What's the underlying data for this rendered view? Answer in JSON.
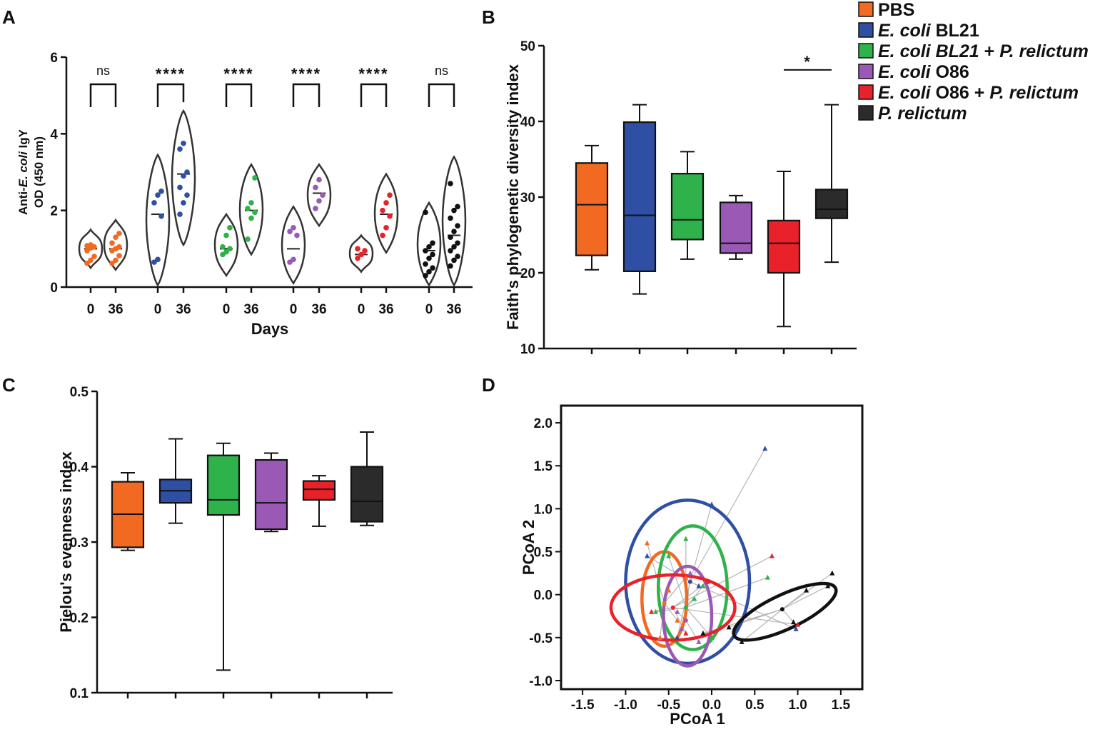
{
  "panel_letters": {
    "a": "A",
    "b": "B",
    "c": "C",
    "d": "D"
  },
  "legend": {
    "items": [
      {
        "name": "pbs",
        "parts": [
          {
            "t": "PBS",
            "i": false
          }
        ],
        "color": "#f26a21"
      },
      {
        "name": "ecoli-bl21",
        "parts": [
          {
            "t": "E. coli",
            "i": true
          },
          {
            "t": " BL21",
            "i": false
          }
        ],
        "color": "#2e4fa3"
      },
      {
        "name": "ecoli-bl21-prelictum",
        "parts": [
          {
            "t": "E. coli BL21",
            "i": true
          },
          {
            "t": " + ",
            "i": false
          },
          {
            "t": "P. relictum",
            "i": true
          }
        ],
        "color": "#2fb24a"
      },
      {
        "name": "ecoli-o86",
        "parts": [
          {
            "t": "E. coli",
            "i": true
          },
          {
            "t": " O86",
            "i": false
          }
        ],
        "color": "#9b59b6"
      },
      {
        "name": "ecoli-o86-prelictum",
        "parts": [
          {
            "t": "E. coli",
            "i": true
          },
          {
            "t": " O86 + ",
            "i": false
          },
          {
            "t": "P. relictum",
            "i": true
          }
        ],
        "color": "#e8212a"
      },
      {
        "name": "prelictum",
        "parts": [
          {
            "t": "P. relictum",
            "i": true
          }
        ],
        "color": "#2b2b2b"
      }
    ]
  },
  "chart_data": [
    {
      "panel": "A",
      "type": "violin",
      "ylabel_line1_pre": "Anti-",
      "ylabel_line1_italic": "E. coli",
      "ylabel_line1_post": " IgY",
      "ylabel_line2": "OD (450 nm)",
      "xlabel": "Days",
      "ylim": [
        0,
        6
      ],
      "yticks": [
        0,
        2,
        4,
        6
      ],
      "timepoint_labels": [
        "0",
        "36"
      ],
      "groups": [
        {
          "color": "#f26a21",
          "significance": "ns",
          "day0": {
            "median": 1.0,
            "min": 0.5,
            "max": 1.5,
            "points": [
              0.62,
              0.7,
              0.8,
              0.95,
              1.02,
              1.05,
              1.08,
              1.1
            ]
          },
          "day36": {
            "median": 1.0,
            "min": 0.45,
            "max": 1.75,
            "points": [
              0.62,
              0.7,
              0.82,
              0.95,
              1.0,
              1.05,
              1.15,
              1.3,
              1.4
            ]
          }
        },
        {
          "color": "#2e4fa3",
          "significance": "****",
          "day0": {
            "median": 1.9,
            "min": 0.05,
            "max": 3.45,
            "points": [
              0.65,
              0.72,
              1.85,
              2.2,
              2.4,
              2.5
            ]
          },
          "day36": {
            "median": 2.95,
            "min": 1.1,
            "max": 4.6,
            "points": [
              1.9,
              2.2,
              2.4,
              2.6,
              2.9,
              3.0,
              3.6,
              3.75
            ]
          }
        },
        {
          "color": "#2fb24a",
          "significance": "****",
          "day0": {
            "median": 1.0,
            "min": 0.3,
            "max": 1.9,
            "points": [
              0.85,
              0.92,
              1.0,
              1.05,
              1.35,
              1.55
            ]
          },
          "day36": {
            "median": 2.0,
            "min": 0.85,
            "max": 3.2,
            "points": [
              1.25,
              1.8,
              1.95,
              2.05,
              2.2,
              2.85
            ]
          }
        },
        {
          "color": "#9b59b6",
          "significance": "****",
          "day0": {
            "median": 1.0,
            "min": 0.1,
            "max": 2.1,
            "points": [
              0.65,
              0.72,
              1.35,
              1.45,
              1.55
            ]
          },
          "day36": {
            "median": 2.45,
            "min": 1.6,
            "max": 3.2,
            "points": [
              2.05,
              2.25,
              2.4,
              2.6,
              2.8
            ]
          }
        },
        {
          "color": "#e8212a",
          "significance": "****",
          "day0": {
            "median": 0.85,
            "min": 0.4,
            "max": 1.35,
            "points": [
              0.75,
              0.85,
              0.95,
              1.0
            ]
          },
          "day36": {
            "median": 1.9,
            "min": 0.9,
            "max": 2.95,
            "points": [
              1.35,
              1.55,
              1.85,
              2.0,
              2.2,
              2.4
            ]
          }
        },
        {
          "color": "#111111",
          "significance": "ns",
          "day0": {
            "median": 0.95,
            "min": 0.05,
            "max": 2.2,
            "points": [
              0.3,
              0.4,
              0.5,
              0.6,
              0.75,
              0.85,
              0.95,
              1.05,
              1.15,
              1.95
            ]
          },
          "day36": {
            "median": 1.35,
            "min": 0.05,
            "max": 3.4,
            "points": [
              0.55,
              0.7,
              0.8,
              0.95,
              1.05,
              1.15,
              1.3,
              1.45,
              1.6,
              1.8,
              2.0,
              2.1,
              2.7
            ]
          }
        }
      ]
    },
    {
      "panel": "B",
      "type": "box",
      "ylabel": "Faith's phylogenetic diversity index",
      "ylim": [
        10,
        50
      ],
      "yticks": [
        10,
        20,
        30,
        40,
        50
      ],
      "significance": {
        "label": "*",
        "between": [
          4,
          5
        ],
        "y": 46.8
      },
      "boxes": [
        {
          "color": "#f26a21",
          "min": 20.4,
          "q1": 22.3,
          "median": 29.0,
          "q3": 34.5,
          "max": 36.8
        },
        {
          "color": "#2e4fa3",
          "min": 17.2,
          "q1": 20.2,
          "median": 27.6,
          "q3": 39.9,
          "max": 42.2
        },
        {
          "color": "#2fb24a",
          "min": 21.8,
          "q1": 24.4,
          "median": 27.0,
          "q3": 33.1,
          "max": 36.0
        },
        {
          "color": "#9b59b6",
          "min": 21.8,
          "q1": 22.6,
          "median": 23.9,
          "q3": 29.3,
          "max": 30.2
        },
        {
          "color": "#e8212a",
          "min": 12.9,
          "q1": 20.0,
          "median": 23.9,
          "q3": 26.9,
          "max": 33.4
        },
        {
          "color": "#2b2b2b",
          "min": 21.4,
          "q1": 27.2,
          "median": 28.4,
          "q3": 31.0,
          "max": 42.2
        }
      ]
    },
    {
      "panel": "C",
      "type": "box",
      "ylabel": "Pielou's evenness index",
      "ylim": [
        0.1,
        0.5
      ],
      "yticks": [
        0.1,
        0.2,
        0.3,
        0.4,
        0.5
      ],
      "ytick_labels": [
        "0.1",
        "0.2",
        "0.3",
        "0.4",
        "0.5"
      ],
      "boxes": [
        {
          "color": "#f26a21",
          "min": 0.289,
          "q1": 0.293,
          "median": 0.337,
          "q3": 0.38,
          "max": 0.392
        },
        {
          "color": "#2e4fa3",
          "min": 0.325,
          "q1": 0.352,
          "median": 0.368,
          "q3": 0.383,
          "max": 0.437
        },
        {
          "color": "#2fb24a",
          "min": 0.13,
          "q1": 0.336,
          "median": 0.356,
          "q3": 0.415,
          "max": 0.431
        },
        {
          "color": "#9b59b6",
          "min": 0.314,
          "q1": 0.317,
          "median": 0.352,
          "q3": 0.409,
          "max": 0.418
        },
        {
          "color": "#e8212a",
          "min": 0.321,
          "q1": 0.356,
          "median": 0.37,
          "q3": 0.381,
          "max": 0.388
        },
        {
          "color": "#2b2b2b",
          "min": 0.322,
          "q1": 0.327,
          "median": 0.354,
          "q3": 0.4,
          "max": 0.446
        }
      ]
    },
    {
      "panel": "D",
      "type": "scatter",
      "xlabel": "PCoA 1",
      "ylabel": "PCoA 2",
      "xlim": [
        -1.75,
        1.75
      ],
      "ylim": [
        -1.1,
        2.2
      ],
      "xticks": [
        -1.5,
        -1.0,
        -0.5,
        0.0,
        0.5,
        1.0,
        1.5
      ],
      "xtick_labels": [
        "-1.5",
        "-1.0",
        "-0.5",
        "0.0",
        "0.5",
        "1.0",
        "1.5"
      ],
      "yticks": [
        -1.0,
        -0.5,
        0.0,
        0.5,
        1.0,
        1.5,
        2.0
      ],
      "ytick_labels": [
        "-1.0",
        "-0.5",
        "0.0",
        "0.5",
        "1.0",
        "1.5",
        "2.0"
      ],
      "groups": [
        {
          "color": "#f26a21",
          "centroid": [
            -0.55,
            -0.1
          ],
          "ellipse": {
            "cx": -0.55,
            "cy": -0.05,
            "rx": 0.26,
            "ry": 0.55,
            "angle": 0
          },
          "points": [
            [
              -0.75,
              0.6
            ],
            [
              -0.5,
              0.05
            ],
            [
              -0.4,
              -0.3
            ],
            [
              -0.6,
              -0.5
            ],
            [
              -0.3,
              0.2
            ]
          ]
        },
        {
          "color": "#2e4fa3",
          "centroid": [
            -0.25,
            0.15
          ],
          "ellipse": {
            "cx": -0.28,
            "cy": 0.15,
            "rx": 0.72,
            "ry": 0.95,
            "angle": 0
          },
          "points": [
            [
              0.62,
              1.7
            ],
            [
              0.0,
              1.05
            ],
            [
              -0.75,
              0.45
            ],
            [
              -0.15,
              0.1
            ],
            [
              0.98,
              -0.4
            ],
            [
              -0.4,
              -0.5
            ]
          ]
        },
        {
          "color": "#2fb24a",
          "centroid": [
            -0.3,
            -0.15
          ],
          "ellipse": {
            "cx": -0.22,
            "cy": 0.08,
            "rx": 0.4,
            "ry": 0.72,
            "angle": 0
          },
          "points": [
            [
              -0.3,
              0.65
            ],
            [
              -0.5,
              0.45
            ],
            [
              -0.65,
              -0.2
            ],
            [
              -0.1,
              0.1
            ],
            [
              0.65,
              0.2
            ],
            [
              0.0,
              -0.5
            ],
            [
              -0.2,
              -0.05
            ]
          ]
        },
        {
          "color": "#9b59b6",
          "centroid": [
            -0.3,
            -0.3
          ],
          "ellipse": {
            "cx": -0.28,
            "cy": -0.25,
            "rx": 0.28,
            "ry": 0.58,
            "angle": 0
          },
          "points": [
            [
              -0.25,
              0.25
            ],
            [
              -0.4,
              -0.2
            ],
            [
              -0.15,
              -0.55
            ],
            [
              -0.35,
              -0.4
            ]
          ]
        },
        {
          "color": "#e8212a",
          "centroid": [
            -0.45,
            -0.15
          ],
          "ellipse": {
            "cx": -0.45,
            "cy": -0.15,
            "rx": 0.72,
            "ry": 0.38,
            "angle": 0
          },
          "points": [
            [
              0.7,
              0.45
            ],
            [
              -0.7,
              -0.2
            ],
            [
              -0.05,
              0.15
            ],
            [
              1.0,
              -0.35
            ],
            [
              -0.3,
              -0.45
            ]
          ]
        },
        {
          "color": "#111111",
          "centroid": [
            0.82,
            -0.17
          ],
          "ellipse": {
            "cx": 0.85,
            "cy": -0.2,
            "rx": 0.65,
            "ry": 0.2,
            "angle": -25
          },
          "points": [
            [
              1.4,
              0.25
            ],
            [
              1.35,
              0.1
            ],
            [
              0.35,
              -0.55
            ],
            [
              0.2,
              -0.38
            ],
            [
              0.95,
              -0.32
            ],
            [
              -0.1,
              -0.45
            ],
            [
              1.1,
              0.05
            ]
          ]
        }
      ]
    }
  ]
}
